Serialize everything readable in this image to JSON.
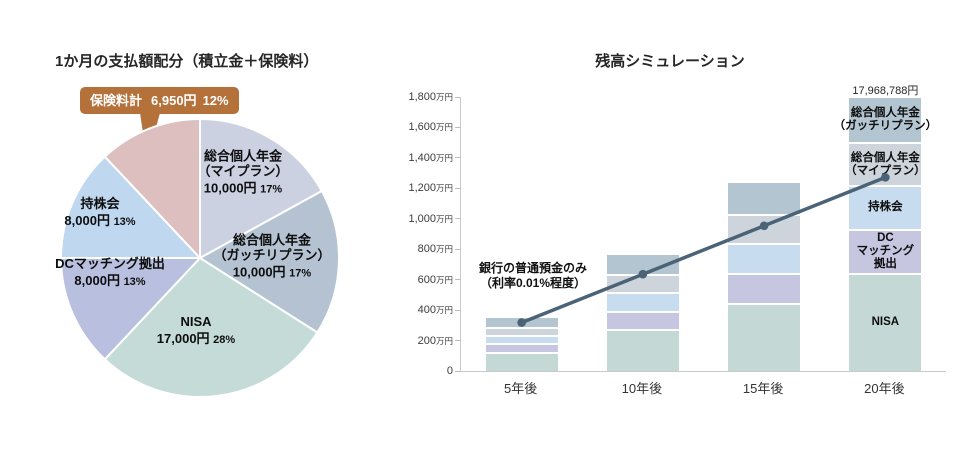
{
  "page": {
    "background": "#ffffff",
    "line_color": "#4a6377",
    "callout_bg": "#b5713a",
    "axis_color": "#c9c9c9"
  },
  "chart_data": [
    {
      "type": "pie",
      "title": "1か月の支払額配分（積立金＋保険料）",
      "start_angle_deg": 0,
      "direction": "clockwise",
      "slices": [
        {
          "name": "総合個人年金（マイプラン）",
          "label_lines": [
            "総合個人年金",
            "（マイプラン）"
          ],
          "amount": "10,000円",
          "percent": "17%",
          "value_percent": 17,
          "color": "#ccd1e2",
          "label_pos": [
            243,
            173
          ]
        },
        {
          "name": "総合個人年金（ガッチリプラン）",
          "label_lines": [
            "総合個人年金",
            "（ガッチリプラン）"
          ],
          "amount": "10,000円",
          "percent": "17%",
          "value_percent": 17,
          "color": "#b4c2d1",
          "label_pos": [
            272,
            257
          ]
        },
        {
          "name": "NISA",
          "label_lines": [
            "NISA"
          ],
          "amount": "17,000円",
          "percent": "28%",
          "value_percent": 28,
          "color": "#c5dbd7",
          "label_pos": [
            196,
            331
          ]
        },
        {
          "name": "DCマッチング拠出",
          "label_lines": [
            "DCマッチング拠出"
          ],
          "amount": "8,000円",
          "percent": "13%",
          "value_percent": 13,
          "color": "#b8bfdf",
          "label_pos": [
            110,
            273
          ]
        },
        {
          "name": "持株会",
          "label_lines": [
            "持株会"
          ],
          "amount": "8,000円",
          "percent": "13%",
          "value_percent": 13,
          "color": "#bfd7ef",
          "label_pos": [
            100,
            213
          ]
        },
        {
          "name": "保険料計",
          "label_lines": [],
          "amount": "6,950円",
          "percent": "12%",
          "value_percent": 12,
          "color": "#ddbfc0",
          "has_callout": true
        }
      ],
      "callout": {
        "label": "保険料計",
        "amount": "6,950円",
        "percent": "12%"
      }
    },
    {
      "type": "bar",
      "subtype": "stacked",
      "title": "残高シミュレーション",
      "categories": [
        "5年後",
        "10年後",
        "15年後",
        "20年後"
      ],
      "unit": "万円",
      "note": "segment values estimated from bar heights; only the 20年後 total is labeled in the image",
      "ylim": [
        0,
        1800
      ],
      "ytick_step": 200,
      "ytick_labels": [
        "0",
        "200万円",
        "400万円",
        "600万円",
        "800万円",
        "1,000万円",
        "1,200万円",
        "1,400万円",
        "1,600万円",
        "1,800万円"
      ],
      "grid": false,
      "series": [
        {
          "name": "NISA",
          "values": [
            126,
            274,
            445,
            647
          ],
          "color": "#c4d9d5",
          "bar_label_lines": [
            "NISA"
          ]
        },
        {
          "name": "DCマッチング拠出",
          "values": [
            56,
            122,
            198,
            288
          ],
          "color": "#c6c6e1",
          "bar_label_lines": [
            "DC",
            "マッチング",
            "拠出"
          ]
        },
        {
          "name": "持株会",
          "values": [
            56,
            122,
            198,
            288
          ],
          "color": "#c7dcee",
          "bar_label_lines": [
            "持株会"
          ]
        },
        {
          "name": "総合個人年金（マイプラン）",
          "values": [
            54,
            118,
            191,
            279
          ],
          "color": "#ced4dc",
          "bar_label_lines": [
            "総合個人年金",
            "（マイプラン）"
          ]
        },
        {
          "name": "総合個人年金（ガッチリプラン）",
          "values": [
            58,
            124,
            204,
            294
          ],
          "color": "#b2c5d0",
          "bar_label_lines": [
            "総合個人年金",
            "（ガッチリプラン）"
          ]
        }
      ],
      "bar_labels_on_last_category_only": true,
      "line_series": {
        "name": "銀行の普通預金のみ（利率0.01%程度）",
        "label_lines": [
          "銀行の普通預金のみ",
          "（利率0.01%程度）"
        ],
        "values": [
          318,
          636,
          954,
          1272
        ],
        "color": "#4a6377"
      },
      "total_label": {
        "category": "20年後",
        "text": "17,968,788円"
      }
    }
  ]
}
